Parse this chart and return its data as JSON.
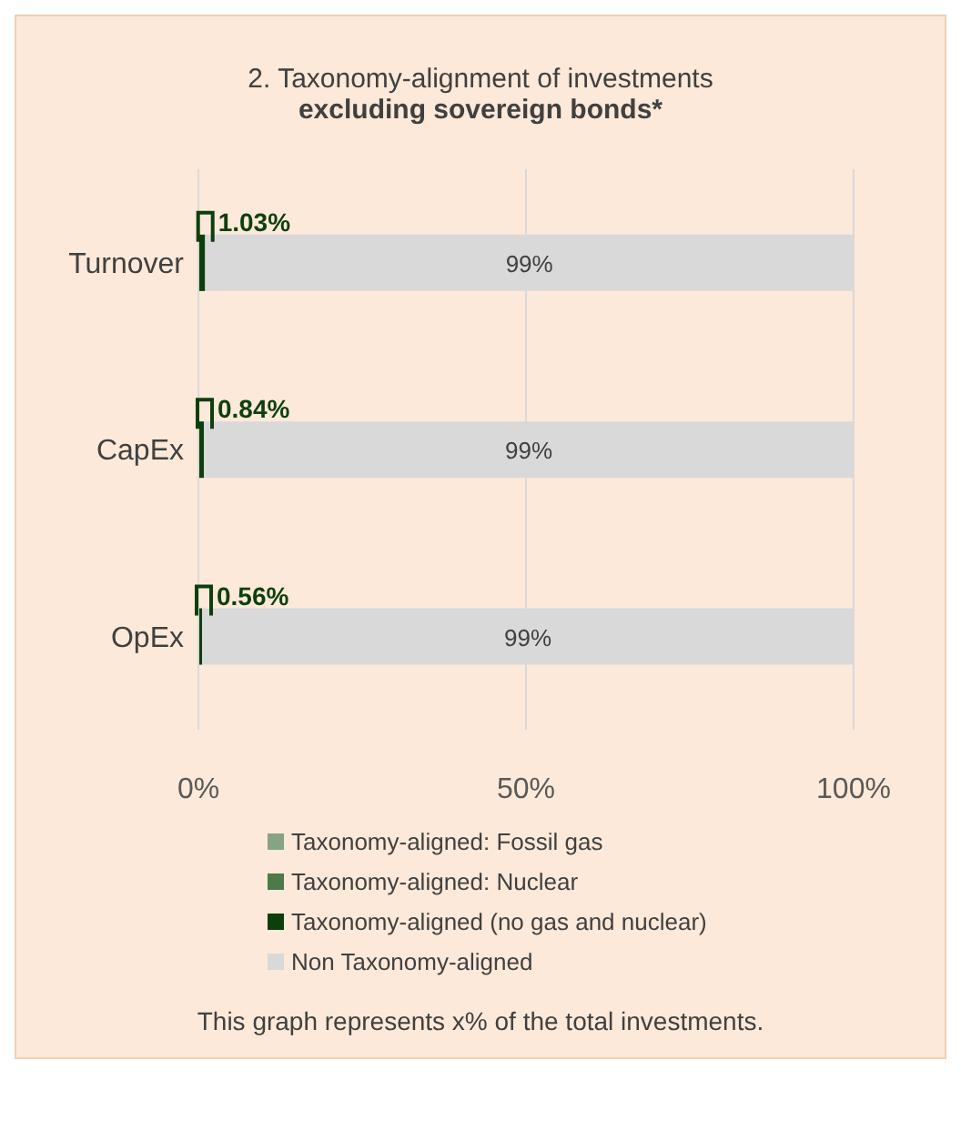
{
  "chart_data": {
    "type": "bar",
    "orientation": "horizontal",
    "stacked": true,
    "title": "2. Taxonomy-alignment of investments",
    "subtitle": "excluding sovereign bonds*",
    "categories": [
      "Turnover",
      "CapEx",
      "OpEx"
    ],
    "series": [
      {
        "name": "Taxonomy-aligned: Fossil gas",
        "color": "#86a481",
        "values": [
          0,
          0,
          0
        ]
      },
      {
        "name": "Taxonomy-aligned: Nuclear",
        "color": "#4e7a49",
        "values": [
          0,
          0,
          0
        ]
      },
      {
        "name": "Taxonomy-aligned (no gas and nuclear)",
        "color": "#0d3f0d",
        "values": [
          1.03,
          0.84,
          0.56
        ],
        "value_labels": [
          "1.03%",
          "0.84%",
          "0.56%"
        ]
      },
      {
        "name": "Non Taxonomy-aligned",
        "color": "#d9d9d9",
        "values": [
          98.97,
          99.16,
          99.44
        ],
        "value_labels": [
          "99%",
          "99%",
          "99%"
        ]
      }
    ],
    "xlim": [
      0,
      100
    ],
    "xticks": [
      {
        "value": 0,
        "label": "0%"
      },
      {
        "value": 50,
        "label": "50%"
      },
      {
        "value": 100,
        "label": "100%"
      }
    ],
    "grid": "x",
    "legend": "bottom",
    "annotations": [
      "This graph represents x% of the total investments."
    ]
  }
}
